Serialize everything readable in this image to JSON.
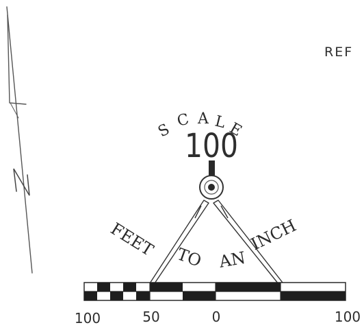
{
  "map": {
    "reference_fragment": "REF",
    "north_arrow_letter": "N",
    "scale_word": "SCALE",
    "scale_value": "100",
    "arc_words": [
      "FEET",
      "TO",
      "AN",
      "INCH"
    ],
    "bar_labels": [
      "100",
      "50",
      "0",
      "100"
    ]
  },
  "colors": {
    "ink": "#2a2a2a",
    "pencil": "#555555",
    "paper": "#ffffff"
  }
}
